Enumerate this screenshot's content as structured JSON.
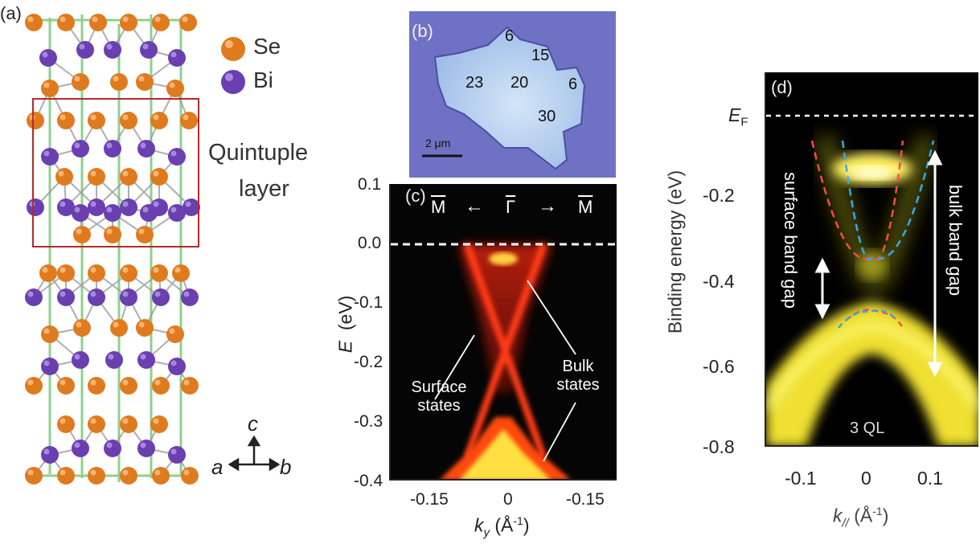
{
  "panels": {
    "a": {
      "label": "(a)",
      "legend": [
        {
          "element": "Se",
          "color": "#e07a1f"
        },
        {
          "element": "Bi",
          "color": "#6a3fb0"
        }
      ],
      "box_label_line1": "Quintuple",
      "box_label_line2": "layer",
      "axes": {
        "c": "c",
        "a": "a",
        "b": "b"
      }
    },
    "b": {
      "label": "(b)",
      "thickness_labels": [
        "6",
        "15",
        "23",
        "20",
        "6",
        "30"
      ],
      "scalebar": "2 μm"
    },
    "c": {
      "label": "(c)",
      "yticks": [
        "0.1",
        "0.0",
        "-0.1",
        "-0.2",
        "-0.3",
        "-0.4"
      ],
      "xticks": [
        "-0.15",
        "0",
        "-0.15"
      ],
      "ylabel_var": "E",
      "ylabel_unit": "(eV)",
      "xlabel_var": "k",
      "xlabel_sub": "y",
      "xlabel_unit": "(Å",
      "xlabel_exp": "-1",
      "xlabel_close": ")",
      "top_labels": {
        "left": "M",
        "center": "Γ",
        "right": "M",
        "arrow_left": "←",
        "arrow_right": "→"
      },
      "annotation_surface_1": "Surface",
      "annotation_surface_2": "states",
      "annotation_bulk_1": "Bulk",
      "annotation_bulk_2": "states"
    },
    "d": {
      "label": "(d)",
      "ef_label": "E",
      "ef_sub": "F",
      "yticks": [
        "-0.2",
        "-0.4",
        "-0.6",
        "-0.8"
      ],
      "xticks": [
        "-0.1",
        "0",
        "0.1"
      ],
      "ylabel": "Binding energy (eV)",
      "xlabel_var": "k",
      "xlabel_sub": "//",
      "xlabel_unit": "(Å",
      "xlabel_exp": "-1",
      "xlabel_close": ")",
      "surface_gap_label": "surface band gap",
      "bulk_gap_label": "bulk band gap",
      "sample_label": "3 QL"
    }
  },
  "colors": {
    "selenium": "#e07a1f",
    "bismuth": "#6a3fb0",
    "quintuple_box": "#b52a2a",
    "cell_edges": "#8fd08f",
    "flake_bg": "#6f72c4",
    "flake": "#b6d4f2",
    "arpes_red": "#ff2a10",
    "arpes_yellow": "#ffef3a",
    "fit_red": "#ff4a4a",
    "fit_blue": "#35a9e8"
  }
}
